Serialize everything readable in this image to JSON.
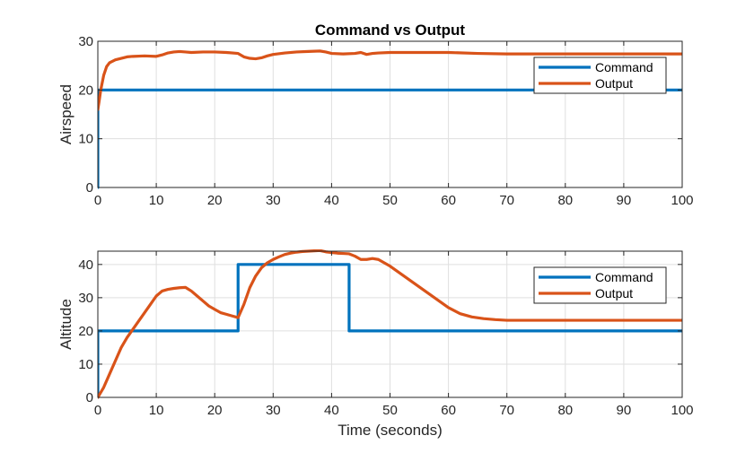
{
  "colors": {
    "command": "#0072BD",
    "output": "#D95319",
    "grid": "#DFDFDF",
    "axis": "#262626"
  },
  "chart_data": [
    {
      "type": "line",
      "title": "Command vs Output",
      "xlabel": "",
      "ylabel": "Airspeed",
      "xlim": [
        0,
        100
      ],
      "ylim": [
        0,
        30
      ],
      "xticks": [
        0,
        10,
        20,
        30,
        40,
        50,
        60,
        70,
        80,
        90,
        100
      ],
      "yticks": [
        0,
        10,
        20,
        30
      ],
      "grid": true,
      "legend": "top-right",
      "series": [
        {
          "name": "Command",
          "x": [
            0,
            0,
            100
          ],
          "y": [
            0,
            20,
            20
          ]
        },
        {
          "name": "Output",
          "x": [
            0,
            0.2,
            0.5,
            1,
            1.5,
            2,
            3,
            4,
            5,
            6,
            8,
            10,
            11,
            12,
            13,
            14,
            15,
            16,
            18,
            20,
            22,
            24,
            25,
            26,
            27,
            28,
            29,
            30,
            32,
            34,
            36,
            38,
            39,
            40,
            42,
            44,
            45,
            46,
            47,
            48,
            50,
            55,
            60,
            65,
            70,
            80,
            90,
            100
          ],
          "y": [
            16,
            17.5,
            20,
            23,
            24.8,
            25.6,
            26.2,
            26.5,
            26.8,
            26.9,
            27,
            26.9,
            27.2,
            27.6,
            27.8,
            27.9,
            27.8,
            27.7,
            27.8,
            27.8,
            27.7,
            27.5,
            26.8,
            26.5,
            26.4,
            26.6,
            27,
            27.3,
            27.6,
            27.8,
            27.9,
            28,
            27.8,
            27.5,
            27.4,
            27.5,
            27.7,
            27.3,
            27.5,
            27.6,
            27.7,
            27.7,
            27.7,
            27.5,
            27.4,
            27.4,
            27.4,
            27.4
          ]
        }
      ]
    },
    {
      "type": "line",
      "title": "",
      "xlabel": "Time (seconds)",
      "ylabel": "Altitude",
      "xlim": [
        0,
        100
      ],
      "ylim": [
        0,
        44
      ],
      "xticks": [
        0,
        10,
        20,
        30,
        40,
        50,
        60,
        70,
        80,
        90,
        100
      ],
      "yticks": [
        0,
        10,
        20,
        30,
        40
      ],
      "grid": true,
      "legend": "top-right",
      "series": [
        {
          "name": "Command",
          "x": [
            0,
            0,
            24,
            24,
            43,
            43,
            100
          ],
          "y": [
            0,
            20,
            20,
            40,
            40,
            20,
            20
          ]
        },
        {
          "name": "Output",
          "x": [
            0,
            1,
            2,
            3,
            4,
            5,
            6,
            7,
            8,
            9,
            10,
            11,
            12,
            13,
            14,
            15,
            16,
            17,
            18,
            19,
            20,
            21,
            22,
            23,
            24,
            25,
            26,
            27,
            28,
            29,
            30,
            31,
            32,
            33,
            34,
            35,
            36,
            37,
            38,
            39,
            40,
            41,
            42,
            43,
            44,
            45,
            46,
            47,
            48,
            50,
            52,
            54,
            56,
            58,
            60,
            62,
            64,
            66,
            68,
            70,
            75,
            80,
            90,
            100
          ],
          "y": [
            0,
            3,
            7,
            11,
            15,
            18,
            20.5,
            23,
            25.5,
            28,
            30.5,
            32,
            32.5,
            32.8,
            33,
            33.1,
            32,
            30.5,
            29,
            27.5,
            26.5,
            25.5,
            25,
            24.5,
            24,
            28,
            33,
            36.5,
            39,
            40.5,
            41.5,
            42.3,
            43,
            43.4,
            43.7,
            43.9,
            44,
            44.1,
            44.2,
            43.8,
            43.6,
            43.4,
            43.3,
            43.2,
            42.5,
            41.5,
            41.5,
            41.8,
            41.5,
            39.5,
            37,
            34.5,
            32,
            29.5,
            27,
            25.2,
            24.2,
            23.7,
            23.4,
            23.2,
            23.2,
            23.2,
            23.2,
            23.2
          ]
        }
      ]
    }
  ]
}
